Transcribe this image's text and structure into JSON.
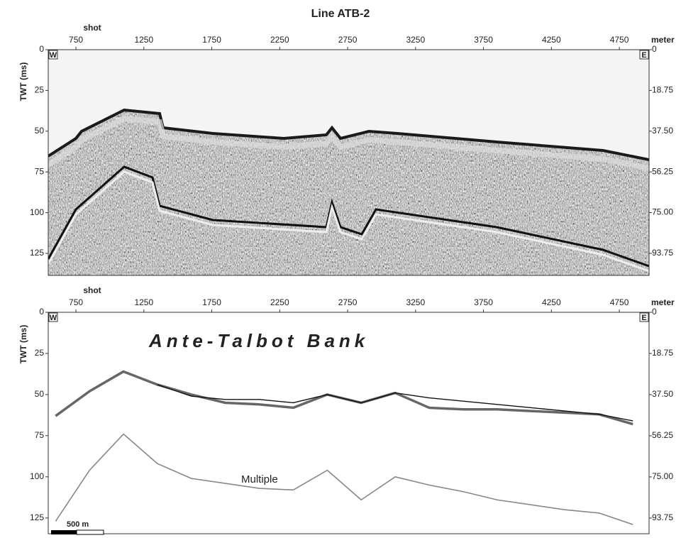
{
  "chart_data": [
    {
      "type": "image",
      "title": "Line ATB-2",
      "xlabel": "shot",
      "ylabel": "TWT (ms)",
      "y2label": "meter",
      "xlim": [
        546,
        4969
      ],
      "xticks": [
        750,
        1250,
        1750,
        2250,
        2750,
        3250,
        3750,
        4250,
        4750
      ],
      "ylim": [
        0,
        138.5
      ],
      "yticks": [
        0,
        25,
        50,
        75,
        100,
        125
      ],
      "invert_y": true,
      "y2lim": [
        0,
        103.9
      ],
      "y2ticks": [
        0,
        18.75,
        {
          "value": 37.5,
          "label": "37.50"
        },
        56.25,
        {
          "value": 75,
          "label": "75.00"
        },
        93.75
      ],
      "corner_labels": [
        "W",
        "E"
      ]
    },
    {
      "type": "line",
      "xlabel": "shot",
      "ylabel": "TWT (ms)",
      "y2label": "meter",
      "xlim": [
        546,
        4969
      ],
      "xticks": [
        750,
        1250,
        1750,
        2250,
        2750,
        3250,
        3750,
        4250,
        4750
      ],
      "ylim": [
        0,
        134.6
      ],
      "yticks": [
        0,
        25,
        50,
        75,
        100,
        125
      ],
      "invert_y": true,
      "y2lim": [
        0,
        100.9
      ],
      "y2ticks": [
        0,
        18.75,
        {
          "value": 37.5,
          "label": "37.50"
        },
        56.25,
        {
          "value": 75,
          "label": "75.00"
        },
        93.75
      ],
      "corner_labels": [
        "W",
        "E"
      ],
      "annotations": [
        "Ante-Talbot Bank",
        "Multiple"
      ],
      "scale_bar": "500 m",
      "x": [
        600,
        850,
        1100,
        1350,
        1600,
        1850,
        2100,
        2350,
        2600,
        2850,
        3100,
        3350,
        3600,
        3850,
        4100,
        4350,
        4600,
        4850
      ],
      "series": [
        {
          "color": "#666666",
          "values": [
            63,
            48,
            36,
            44,
            50,
            55,
            56,
            58,
            50,
            55,
            49,
            58,
            59,
            59,
            60,
            61,
            62,
            68
          ]
        },
        {
          "color": "#111111",
          "values": [
            null,
            null,
            null,
            44,
            51,
            53,
            53,
            55,
            50,
            55,
            49,
            52,
            54,
            56,
            58,
            60,
            62,
            66
          ]
        },
        {
          "color": "#888888",
          "values": [
            127,
            96,
            74,
            92,
            101,
            104,
            107,
            108,
            96,
            114,
            100,
            105,
            109,
            114,
            117,
            120,
            122,
            129
          ]
        }
      ]
    }
  ]
}
